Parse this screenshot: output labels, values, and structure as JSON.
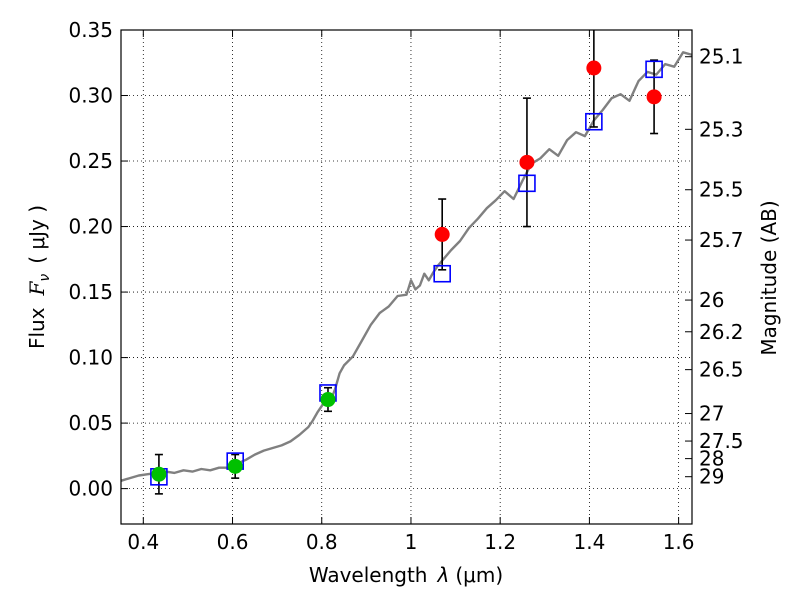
{
  "chart_data": {
    "type": "scatter",
    "xlabel": "Wavelength",
    "xlabel_symbol": "λ",
    "xlabel_unit": "(μm)",
    "ylabel": "Flux",
    "ylabel_symbol": "F",
    "ylabel_subscript": "ν",
    "ylabel_unit": "( μJy )",
    "right_ylabel": "Magnitude (AB)",
    "xlim": [
      0.35,
      1.63
    ],
    "ylim": [
      -0.027,
      0.35
    ],
    "x_ticks": [
      0.4,
      0.6,
      0.8,
      1.0,
      1.2,
      1.4,
      1.6
    ],
    "x_tick_labels": [
      "0.4",
      "0.6",
      "0.8",
      "1",
      "1.2",
      "1.4",
      "1.6"
    ],
    "y_ticks": [
      0.0,
      0.05,
      0.1,
      0.15,
      0.2,
      0.25,
      0.3,
      0.35
    ],
    "y_tick_labels": [
      "0.00",
      "0.05",
      "0.10",
      "0.15",
      "0.20",
      "0.25",
      "0.30",
      "0.35"
    ],
    "right_ticks": [
      {
        "label": "25.1",
        "flux": 0.3296
      },
      {
        "label": "25.3",
        "flux": 0.2742
      },
      {
        "label": "25.5",
        "flux": 0.2281
      },
      {
        "label": "25.7",
        "flux": 0.1897
      },
      {
        "label": "26",
        "flux": 0.1439
      },
      {
        "label": "26.2",
        "flux": 0.1197
      },
      {
        "label": "26.5",
        "flux": 0.0908
      },
      {
        "label": "27",
        "flux": 0.0573
      },
      {
        "label": "27.5",
        "flux": 0.0363
      },
      {
        "label": "28",
        "flux": 0.0229
      },
      {
        "label": "29",
        "flux": 0.0091
      }
    ],
    "grid": true,
    "series": [
      {
        "name": "model SED",
        "kind": "line",
        "color": "#808080",
        "x": [
          0.35,
          0.37,
          0.39,
          0.41,
          0.43,
          0.45,
          0.47,
          0.49,
          0.51,
          0.53,
          0.55,
          0.57,
          0.59,
          0.61,
          0.63,
          0.65,
          0.67,
          0.69,
          0.71,
          0.73,
          0.75,
          0.77,
          0.78,
          0.79,
          0.8,
          0.81,
          0.82,
          0.83,
          0.84,
          0.85,
          0.87,
          0.89,
          0.91,
          0.93,
          0.95,
          0.97,
          0.99,
          1.0,
          1.01,
          1.02,
          1.03,
          1.04,
          1.05,
          1.06,
          1.07,
          1.09,
          1.11,
          1.13,
          1.15,
          1.17,
          1.19,
          1.21,
          1.23,
          1.25,
          1.27,
          1.29,
          1.31,
          1.33,
          1.35,
          1.37,
          1.39,
          1.41,
          1.43,
          1.45,
          1.47,
          1.49,
          1.51,
          1.53,
          1.55,
          1.57,
          1.59,
          1.61,
          1.63
        ],
        "y": [
          0.006,
          0.008,
          0.01,
          0.011,
          0.012,
          0.013,
          0.012,
          0.014,
          0.013,
          0.015,
          0.014,
          0.016,
          0.016,
          0.019,
          0.022,
          0.026,
          0.029,
          0.031,
          0.033,
          0.036,
          0.041,
          0.047,
          0.052,
          0.058,
          0.063,
          0.069,
          0.067,
          0.076,
          0.088,
          0.094,
          0.101,
          0.113,
          0.125,
          0.134,
          0.139,
          0.147,
          0.148,
          0.159,
          0.152,
          0.155,
          0.164,
          0.159,
          0.165,
          0.17,
          0.174,
          0.182,
          0.189,
          0.199,
          0.206,
          0.214,
          0.22,
          0.227,
          0.221,
          0.235,
          0.248,
          0.252,
          0.259,
          0.254,
          0.266,
          0.272,
          0.269,
          0.281,
          0.289,
          0.298,
          0.301,
          0.296,
          0.311,
          0.318,
          0.316,
          0.324,
          0.322,
          0.333,
          0.331
        ]
      },
      {
        "name": "model photometry",
        "kind": "open-square",
        "color": "#0000ff",
        "x": [
          0.435,
          0.606,
          0.814,
          1.07,
          1.26,
          1.41,
          1.545
        ],
        "y": [
          0.009,
          0.021,
          0.073,
          0.164,
          0.233,
          0.28,
          0.32
        ]
      },
      {
        "name": "observed (green)",
        "kind": "filled-circle",
        "color": "#00c000",
        "x": [
          0.435,
          0.606,
          0.814
        ],
        "y": [
          0.011,
          0.017,
          0.068
        ],
        "yerr": [
          0.015,
          0.009,
          0.009
        ]
      },
      {
        "name": "observed (red)",
        "kind": "filled-circle",
        "color": "#ff0000",
        "x": [
          1.07,
          1.26,
          1.41,
          1.545
        ],
        "y": [
          0.194,
          0.249,
          0.321,
          0.299
        ],
        "yerr": [
          0.027,
          0.049,
          0.045,
          0.028
        ]
      }
    ]
  }
}
